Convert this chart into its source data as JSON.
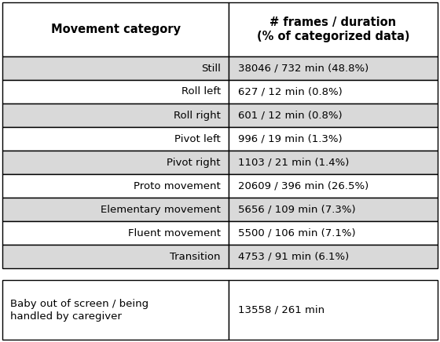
{
  "header_col1": "Movement category",
  "header_col2": "# frames / duration\n(% of categorized data)",
  "rows": [
    {
      "cat": "Still",
      "val": "38046 / 732 min (48.8%)",
      "bg": "#d9d9d9"
    },
    {
      "cat": "Roll left",
      "val": "627 / 12 min (0.8%)",
      "bg": "#ffffff"
    },
    {
      "cat": "Roll right",
      "val": "601 / 12 min (0.8%)",
      "bg": "#d9d9d9"
    },
    {
      "cat": "Pivot left",
      "val": "996 / 19 min (1.3%)",
      "bg": "#ffffff"
    },
    {
      "cat": "Pivot right",
      "val": "1103 / 21 min (1.4%)",
      "bg": "#d9d9d9"
    },
    {
      "cat": "Proto movement",
      "val": "20609 / 396 min (26.5%)",
      "bg": "#ffffff"
    },
    {
      "cat": "Elementary movement",
      "val": "5656 / 109 min (7.3%)",
      "bg": "#d9d9d9"
    },
    {
      "cat": "Fluent movement",
      "val": "5500 / 106 min (7.1%)",
      "bg": "#ffffff"
    },
    {
      "cat": "Transition",
      "val": "4753 / 91 min (6.1%)",
      "bg": "#d9d9d9"
    }
  ],
  "footer_cat": "Baby out of screen / being\nhandled by caregiver",
  "footer_val": "13558 / 261 min",
  "header_bg": "#ffffff",
  "footer_bg": "#ffffff",
  "border_color": "#000000",
  "col_split": 0.52,
  "font_size": 9.5,
  "header_font_size": 10.5,
  "figw": 5.6,
  "figh": 4.36,
  "dpi": 100
}
